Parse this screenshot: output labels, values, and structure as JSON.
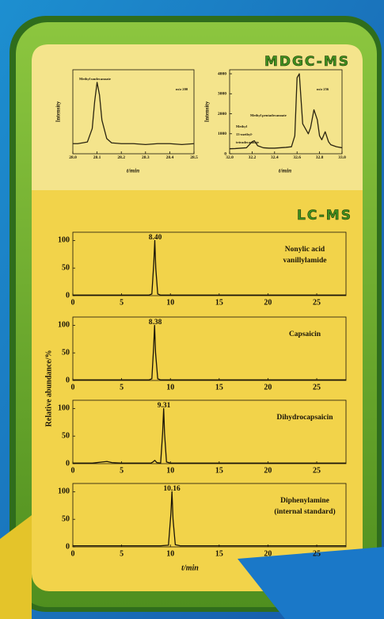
{
  "mdgc_title": "MDGC-MS",
  "lcms_title": "LC-MS",
  "lc_axis_labels": {
    "y": "Relative abundance/%",
    "x": "t/min"
  },
  "chart_data": [
    {
      "type": "line",
      "color": "#2a2410",
      "x": [
        28.0,
        28.02,
        28.04,
        28.06,
        28.08,
        28.09,
        28.1,
        28.11,
        28.12,
        28.14,
        28.16,
        28.2,
        28.25,
        28.3,
        28.35,
        28.4,
        28.45,
        28.5
      ],
      "values": [
        12,
        12,
        13,
        14,
        30,
        62,
        85,
        70,
        40,
        18,
        13,
        12,
        12,
        11,
        12,
        12,
        11,
        12
      ],
      "xlim": [
        28.0,
        28.5
      ],
      "ylim": [
        0,
        100
      ],
      "xticks": [
        {
          "value": 28.0,
          "label": "28.0"
        },
        {
          "value": 28.1,
          "label": "28.1"
        },
        {
          "value": 28.2,
          "label": "28.2"
        },
        {
          "value": 28.3,
          "label": "28.3"
        },
        {
          "value": 28.4,
          "label": "28.4"
        },
        {
          "value": 28.5,
          "label": "28.5"
        }
      ],
      "xlabel": "t/min",
      "ylabel": "Intensity",
      "annotations": [
        "Methyl undecanoate",
        "m/z 200"
      ]
    },
    {
      "type": "line",
      "color": "#2a2410",
      "x": [
        32.0,
        32.05,
        32.1,
        32.15,
        32.2,
        32.22,
        32.25,
        32.3,
        32.35,
        32.4,
        32.45,
        32.5,
        32.55,
        32.58,
        32.6,
        32.62,
        32.65,
        32.7,
        32.72,
        32.75,
        32.78,
        32.8,
        32.82,
        32.85,
        32.88,
        32.9,
        32.95,
        33.0
      ],
      "values": [
        250,
        260,
        280,
        300,
        600,
        650,
        400,
        300,
        280,
        280,
        300,
        320,
        350,
        900,
        3800,
        4000,
        1500,
        1000,
        1300,
        2200,
        1700,
        900,
        700,
        1100,
        600,
        450,
        350,
        300
      ],
      "xlim": [
        32.0,
        33.0
      ],
      "ylim": [
        0,
        4200
      ],
      "xticks": [
        {
          "value": 32.0,
          "label": "32.0"
        },
        {
          "value": 32.2,
          "label": "32.2"
        },
        {
          "value": 32.4,
          "label": "32.4"
        },
        {
          "value": 32.6,
          "label": "32.6"
        },
        {
          "value": 32.8,
          "label": "32.8"
        },
        {
          "value": 33.0,
          "label": "33.0"
        }
      ],
      "yticks": [
        0,
        1000,
        2000,
        3000,
        4000
      ],
      "xlabel": "t/min",
      "ylabel": "Intensity",
      "annotations": [
        "Methyl pentadecanoate",
        "Methyl",
        "13-methyl-",
        "tetradecanoate",
        "m/z 256"
      ]
    },
    {
      "type": "line",
      "color": "#1a1408",
      "x": [
        0,
        2,
        4,
        6,
        7,
        7.8,
        8.1,
        8.3,
        8.4,
        8.5,
        8.7,
        9,
        10,
        12,
        15,
        18,
        21,
        24,
        27,
        28
      ],
      "values": [
        1,
        1,
        1,
        1,
        1,
        1,
        3,
        60,
        100,
        50,
        3,
        1,
        1,
        1,
        1,
        1,
        1,
        1,
        1,
        1
      ],
      "xlim": [
        0,
        28
      ],
      "ylim": [
        0,
        115
      ],
      "xticks": [
        0,
        5,
        10,
        15,
        20,
        25
      ],
      "yticks": [
        0,
        50,
        100
      ],
      "annotations": [
        "8.40",
        "Nonylic acid",
        "vanillylamide"
      ]
    },
    {
      "type": "line",
      "color": "#1a1408",
      "x": [
        0,
        2,
        4,
        6,
        7,
        7.8,
        8.1,
        8.28,
        8.38,
        8.48,
        8.7,
        9,
        10,
        12,
        15,
        18,
        21,
        24,
        27,
        28
      ],
      "values": [
        1,
        1,
        1,
        1,
        1,
        1,
        3,
        60,
        100,
        50,
        3,
        1,
        1,
        1,
        1,
        1,
        1,
        1,
        1,
        1
      ],
      "xlim": [
        0,
        28
      ],
      "ylim": [
        0,
        115
      ],
      "xticks": [
        0,
        5,
        10,
        15,
        20,
        25
      ],
      "yticks": [
        0,
        50,
        100
      ],
      "annotations": [
        "8.38",
        "Capsaicin"
      ]
    },
    {
      "type": "line",
      "color": "#1a1408",
      "x": [
        0,
        1,
        2,
        3,
        3.5,
        4,
        5,
        6,
        7,
        8,
        8.2,
        8.4,
        8.6,
        9,
        9.2,
        9.31,
        9.4,
        9.6,
        10,
        12,
        15,
        18,
        21,
        24,
        27,
        28
      ],
      "values": [
        1,
        1,
        1,
        3,
        4,
        2,
        1,
        1,
        1,
        1,
        3,
        6,
        2,
        1,
        55,
        100,
        55,
        3,
        1,
        1,
        1,
        1,
        1,
        1,
        1,
        1
      ],
      "xlim": [
        0,
        28
      ],
      "ylim": [
        0,
        115
      ],
      "xticks": [
        0,
        5,
        10,
        15,
        20,
        25
      ],
      "yticks": [
        0,
        50,
        100
      ],
      "annotations": [
        "9.31",
        "Dihydrocapsaicin"
      ]
    },
    {
      "type": "line",
      "color": "#1a1408",
      "x": [
        0,
        2,
        4,
        6,
        8,
        9,
        9.8,
        10.05,
        10.16,
        10.27,
        10.5,
        11,
        13,
        15,
        18,
        21,
        24,
        27,
        28
      ],
      "values": [
        2,
        2,
        2,
        2,
        2,
        2,
        3,
        60,
        100,
        50,
        4,
        2,
        2,
        2,
        2,
        2,
        2,
        2,
        2
      ],
      "xlim": [
        0,
        28
      ],
      "ylim": [
        0,
        115
      ],
      "xticks": [
        0,
        5,
        10,
        15,
        20,
        25
      ],
      "yticks": [
        0,
        50,
        100
      ],
      "annotations": [
        "10.16",
        "Diphenylamine",
        "(internal standard)"
      ]
    }
  ]
}
